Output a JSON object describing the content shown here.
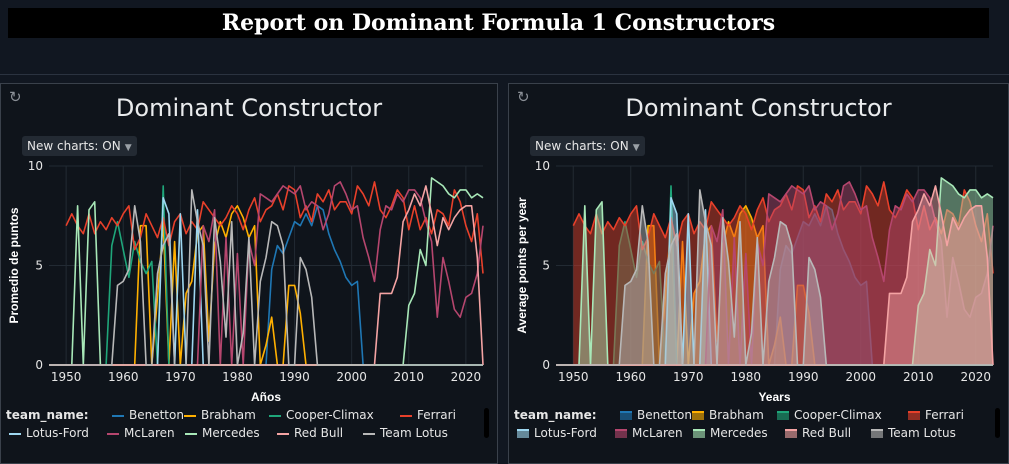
{
  "header": {
    "title": "Report on Dominant Formula 1 Constructors"
  },
  "charts": {
    "left": {
      "title": "Dominant Constructor",
      "toggle": "New charts: ON",
      "xlabel": "Años",
      "ylabel": "Promedio de puntos"
    },
    "right": {
      "title": "Dominant Constructor",
      "toggle": "New charts: ON",
      "xlabel": "Years",
      "ylabel": "Average points per year"
    }
  },
  "legend_title": "team_name:",
  "chart_data": [
    {
      "type": "line",
      "title": "Dominant Constructor",
      "xlabel": "Años",
      "ylabel": "Promedio de puntos",
      "xlim": [
        1947,
        2023
      ],
      "ylim": [
        0,
        10
      ],
      "xticks": [
        1950,
        1960,
        1970,
        1980,
        1990,
        2000,
        2010,
        2020
      ],
      "yticks": [
        0,
        5,
        10
      ],
      "grid": true,
      "legend_title": "team_name:",
      "legend_position": "bottom",
      "series": [
        {
          "name": "Benetton",
          "color": "#1f77b4",
          "x": [
            1947,
            1985,
            1986,
            1987,
            1988,
            1989,
            1990,
            1991,
            1992,
            1993,
            1994,
            1995,
            1996,
            1997,
            1998,
            1999,
            2000,
            2001,
            2002,
            2023
          ],
          "y": [
            0,
            0,
            4.8,
            6.0,
            5.6,
            6.4,
            7.2,
            7.0,
            7.6,
            7.0,
            8.0,
            7.8,
            6.6,
            5.8,
            5.2,
            4.4,
            4.0,
            4.2,
            0,
            0
          ]
        },
        {
          "name": "Brabham",
          "color": "#ffb000",
          "x": [
            1947,
            1962,
            1963,
            1964,
            1965,
            1966,
            1967,
            1968,
            1969,
            1970,
            1971,
            1972,
            1973,
            1974,
            1975,
            1976,
            1977,
            1978,
            1979,
            1980,
            1981,
            1982,
            1983,
            1984,
            1985,
            1986,
            1987,
            1988,
            1989,
            1990,
            1991,
            1992,
            2023
          ],
          "y": [
            0,
            0,
            7.0,
            7.0,
            0,
            3.4,
            7.2,
            0,
            6.2,
            0,
            3.6,
            4.2,
            6.6,
            7.0,
            1.2,
            6.0,
            7.2,
            6.4,
            7.6,
            8.0,
            7.4,
            6.4,
            7.0,
            0,
            1.0,
            2.4,
            0,
            0,
            4.0,
            4.0,
            2.6,
            0,
            0
          ]
        },
        {
          "name": "Cooper-Climax",
          "color": "#1fa67a",
          "x": [
            1947,
            1957,
            1958,
            1959,
            1960,
            1961,
            1962,
            1963,
            1964,
            1965,
            1966,
            1967,
            1968,
            2023
          ],
          "y": [
            0,
            0,
            6.0,
            7.2,
            5.8,
            4.4,
            6.2,
            5.2,
            4.6,
            5.2,
            0,
            9.0,
            0,
            0
          ]
        },
        {
          "name": "Ferrari",
          "color": "#e8402a",
          "x": [
            1950,
            1951,
            1952,
            1953,
            1954,
            1955,
            1956,
            1957,
            1958,
            1959,
            1960,
            1961,
            1962,
            1963,
            1964,
            1965,
            1966,
            1967,
            1968,
            1969,
            1970,
            1971,
            1972,
            1973,
            1974,
            1975,
            1976,
            1977,
            1978,
            1979,
            1980,
            1981,
            1982,
            1983,
            1984,
            1985,
            1986,
            1987,
            1988,
            1989,
            1990,
            1991,
            1992,
            1993,
            1994,
            1995,
            1996,
            1997,
            1998,
            1999,
            2000,
            2001,
            2002,
            2003,
            2004,
            2005,
            2006,
            2007,
            2008,
            2009,
            2010,
            2011,
            2012,
            2013,
            2014,
            2015,
            2016,
            2017,
            2018,
            2019,
            2020,
            2021,
            2022,
            2023
          ],
          "y": [
            7.0,
            7.6,
            7.0,
            6.6,
            7.6,
            6.6,
            7.2,
            6.8,
            7.4,
            7.0,
            7.6,
            8.0,
            5.8,
            6.4,
            7.6,
            7.0,
            6.4,
            7.4,
            6.0,
            7.2,
            7.6,
            6.6,
            7.2,
            6.8,
            8.2,
            7.8,
            7.4,
            7.0,
            7.4,
            8.0,
            7.6,
            6.8,
            7.8,
            8.4,
            7.2,
            7.8,
            8.0,
            8.6,
            7.8,
            9.0,
            8.8,
            7.4,
            8.0,
            7.2,
            8.6,
            8.2,
            8.8,
            7.8,
            8.2,
            8.2,
            7.6,
            9.0,
            8.6,
            8.0,
            9.2,
            7.8,
            7.4,
            8.0,
            8.8,
            8.4,
            6.8,
            8.0,
            6.8,
            7.4,
            6.6,
            7.8,
            7.6,
            7.0,
            8.8,
            8.2,
            7.0,
            6.2,
            7.6,
            4.6
          ]
        },
        {
          "name": "Lotus-Ford",
          "color": "#9ed7f0",
          "x": [
            1947,
            1966,
            1967,
            1968,
            1969,
            1970,
            1971,
            1972,
            1973,
            1974,
            1975,
            1976,
            2023
          ],
          "y": [
            0,
            0,
            8.4,
            7.6,
            0,
            7.6,
            0,
            0,
            7.8,
            0,
            0,
            0,
            0
          ]
        },
        {
          "name": "McLaren",
          "color": "#b5466e",
          "x": [
            1947,
            1970,
            1971,
            1972,
            1973,
            1974,
            1975,
            1976,
            1977,
            1978,
            1979,
            1980,
            1981,
            1982,
            1983,
            1984,
            1985,
            1986,
            1987,
            1988,
            1989,
            1990,
            1991,
            1992,
            1993,
            1994,
            1995,
            1996,
            1997,
            1998,
            1999,
            2000,
            2001,
            2002,
            2003,
            2004,
            2005,
            2006,
            2007,
            2008,
            2009,
            2010,
            2011,
            2012,
            2013,
            2014,
            2015,
            2016,
            2017,
            2018,
            2019,
            2020,
            2021,
            2022,
            2023
          ],
          "y": [
            0,
            0,
            0,
            0,
            0,
            7.0,
            6.2,
            7.8,
            0,
            6.4,
            0,
            5.6,
            0,
            6.2,
            5.0,
            8.6,
            8.4,
            8.2,
            8.6,
            9.0,
            8.8,
            8.6,
            9.0,
            7.8,
            8.2,
            8.0,
            6.8,
            7.6,
            9.0,
            9.2,
            8.6,
            7.8,
            8.0,
            6.4,
            5.4,
            4.2,
            6.8,
            8.0,
            7.8,
            8.6,
            8.2,
            8.8,
            8.8,
            8.4,
            7.2,
            6.2,
            2.4,
            5.4,
            4.2,
            2.8,
            2.4,
            3.4,
            3.6,
            4.6,
            7.0
          ]
        },
        {
          "name": "Mercedes",
          "color": "#a8e8b8",
          "x": [
            1947,
            1951,
            1952,
            1953,
            1954,
            1955,
            1956,
            1957,
            2009,
            2010,
            2011,
            2012,
            2013,
            2014,
            2015,
            2016,
            2017,
            2018,
            2019,
            2020,
            2021,
            2022,
            2023
          ],
          "y": [
            0,
            0,
            8.0,
            0,
            7.8,
            8.2,
            0,
            0,
            0,
            3.0,
            3.6,
            5.8,
            5.0,
            9.4,
            9.2,
            9.0,
            8.6,
            8.4,
            8.8,
            8.8,
            8.4,
            8.6,
            8.4
          ]
        },
        {
          "name": "Red Bull",
          "color": "#f4a3a3",
          "x": [
            1947,
            2004,
            2005,
            2006,
            2007,
            2008,
            2009,
            2010,
            2011,
            2012,
            2013,
            2014,
            2015,
            2016,
            2017,
            2018,
            2019,
            2020,
            2021,
            2022,
            2023
          ],
          "y": [
            0,
            0,
            3.6,
            3.6,
            3.6,
            4.4,
            7.2,
            7.8,
            8.6,
            8.0,
            9.0,
            7.6,
            6.0,
            7.4,
            6.8,
            7.4,
            7.8,
            8.0,
            8.0,
            5.4,
            0
          ]
        },
        {
          "name": "Team Lotus",
          "color": "#b8b8b8",
          "x": [
            1947,
            1958,
            1959,
            1960,
            1961,
            1962,
            1963,
            1964,
            1965,
            1966,
            1967,
            1968,
            1969,
            1970,
            1971,
            1972,
            1973,
            1974,
            1975,
            1976,
            1977,
            1978,
            1979,
            1980,
            1981,
            1982,
            1983,
            1984,
            1985,
            1986,
            1987,
            1988,
            1989,
            1990,
            1991,
            1992,
            1993,
            1994,
            1995,
            2023
          ],
          "y": [
            0,
            0,
            4.0,
            4.2,
            4.8,
            8.0,
            6.2,
            0,
            0,
            4.6,
            6.0,
            6.6,
            0,
            0,
            0,
            8.8,
            7.2,
            6.0,
            0,
            7.4,
            5.2,
            1.4,
            7.2,
            0,
            1.6,
            6.4,
            0,
            4.2,
            5.4,
            7.2,
            7.0,
            6.0,
            0,
            0,
            5.4,
            4.8,
            3.4,
            0,
            0,
            0
          ]
        }
      ]
    },
    {
      "type": "area",
      "title": "Dominant Constructor",
      "xlabel": "Years",
      "ylabel": "Average points per year",
      "xlim": [
        1947,
        2023
      ],
      "ylim": [
        0,
        10
      ],
      "xticks": [
        1950,
        1960,
        1970,
        1980,
        1990,
        2000,
        2010,
        2020
      ],
      "yticks": [
        0,
        5,
        10
      ],
      "grid": true,
      "legend_title": "team_name:",
      "legend_position": "bottom",
      "series_ref": "same data as left chart"
    }
  ],
  "legend_items": [
    {
      "name": "Benetton",
      "color": "#1f77b4"
    },
    {
      "name": "Brabham",
      "color": "#ffb000"
    },
    {
      "name": "Cooper-Climax",
      "color": "#1fa67a"
    },
    {
      "name": "Ferrari",
      "color": "#e8402a"
    },
    {
      "name": "Lotus-Ford",
      "color": "#9ed7f0"
    },
    {
      "name": "McLaren",
      "color": "#b5466e"
    },
    {
      "name": "Mercedes",
      "color": "#a8e8b8"
    },
    {
      "name": "Red Bull",
      "color": "#f4a3a3"
    },
    {
      "name": "Team Lotus",
      "color": "#b8b8b8"
    }
  ],
  "icons": {
    "refresh": "refresh-icon",
    "dropdown": "chevron-down-icon"
  }
}
